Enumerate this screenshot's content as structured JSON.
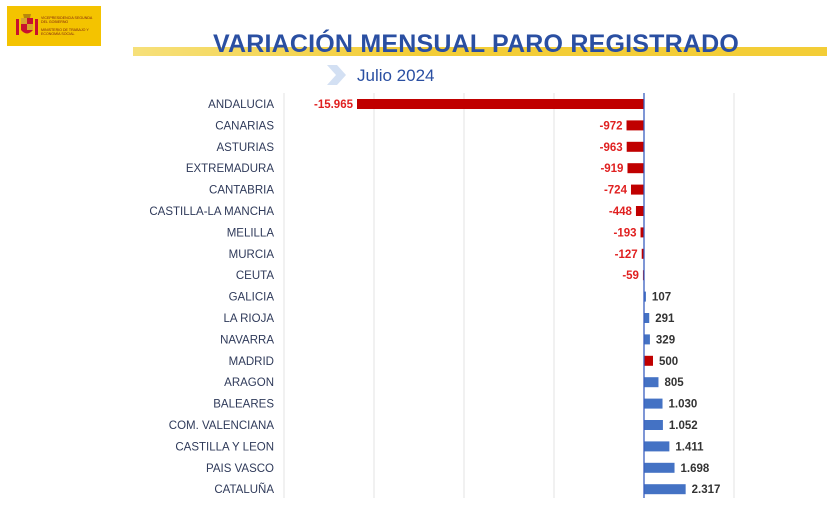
{
  "logo": {
    "line1": "VICEPRESIDENCIA SEGUNDA DEL GOBIERNO",
    "line2": "MINISTERIO DE TRABAJO Y ECONOMÍA SOCIAL"
  },
  "header": {
    "title": "VARIACIÓN MENSUAL PARO REGISTRADO",
    "subtitle": "Julio 2024"
  },
  "colors": {
    "negative": "#c00000",
    "positive": "#4472c4",
    "madrid": "#c00000",
    "label_negative": "#e02020",
    "label_positive": "#333333",
    "title": "#2a4fa2",
    "category_text": "#2f3a5a"
  },
  "chart_data": {
    "type": "bar",
    "orientation": "horizontal",
    "title": "VARIACIÓN MENSUAL PARO REGISTRADO",
    "subtitle": "Julio 2024",
    "categories": [
      "ANDALUCIA",
      "CANARIAS",
      "ASTURIAS",
      "EXTREMADURA",
      "CANTABRIA",
      "CASTILLA-LA MANCHA",
      "MELILLA",
      "MURCIA",
      "CEUTA",
      "GALICIA",
      "LA RIOJA",
      "NAVARRA",
      "MADRID",
      "ARAGON",
      "BALEARES",
      "COM. VALENCIANA",
      "CASTILLA Y LEON",
      "PAIS VASCO",
      "CATALUÑA"
    ],
    "values": [
      -15965,
      -972,
      -963,
      -919,
      -724,
      -448,
      -193,
      -127,
      -59,
      107,
      291,
      329,
      500,
      805,
      1030,
      1052,
      1411,
      1698,
      2317
    ],
    "labels": [
      "-15.965",
      "-972",
      "-963",
      "-919",
      "-724",
      "-448",
      "-193",
      "-127",
      "-59",
      "107",
      "291",
      "329",
      "500",
      "805",
      "1.030",
      "1.052",
      "1.411",
      "1.698",
      "2.317"
    ],
    "highlight": "MADRID",
    "xlim": [
      -20000,
      5000
    ],
    "grid": true
  }
}
